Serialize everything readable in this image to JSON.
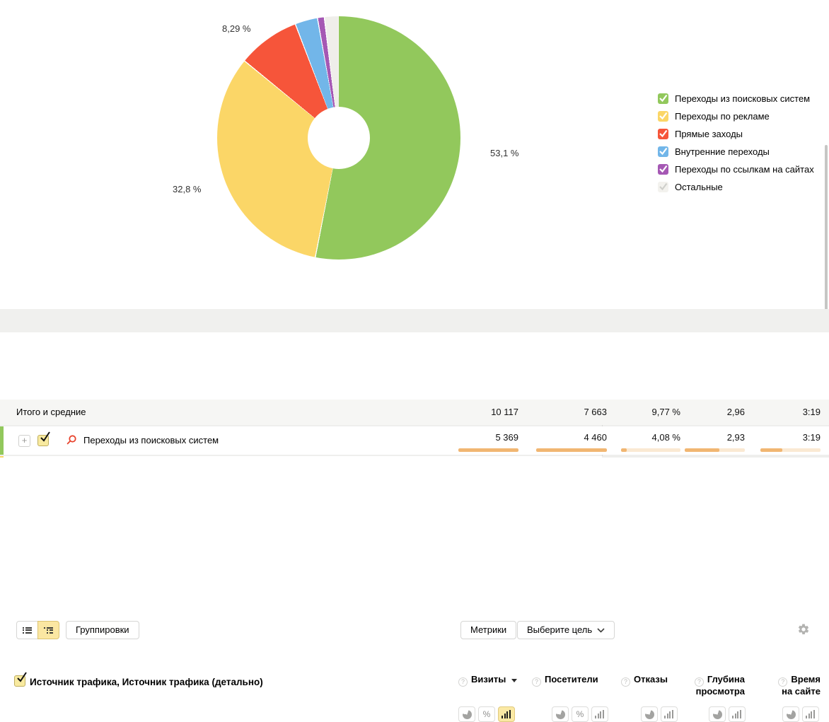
{
  "chart_data": {
    "type": "pie",
    "donut": true,
    "legend_position": "right",
    "unit": "%",
    "slices": [
      {
        "label": "Переходы из поисковых систем",
        "value": 53.1,
        "color": "#92c85c"
      },
      {
        "label": "Переходы по рекламе",
        "value": 32.8,
        "color": "#fbd667"
      },
      {
        "label": "Прямые заходы",
        "value": 8.29,
        "color": "#f6553a"
      },
      {
        "label": "Внутренние переходы",
        "value": 3.0,
        "color": "#72b6e9"
      },
      {
        "label": "Переходы по ссылкам на сайтах",
        "value": 0.9,
        "color": "#a558b4"
      },
      {
        "label": "Остальные",
        "value": 1.91,
        "color": "#efeeea"
      }
    ],
    "visible_percent_labels": {
      "top": "8,29 %",
      "right": "53,1 %",
      "left": "32,8 %"
    }
  },
  "legend": {
    "items": [
      {
        "label": "Переходы из поисковых систем",
        "color": "#92c85c",
        "check_color": "#ffffff",
        "checked": true
      },
      {
        "label": "Переходы по рекламе",
        "color": "#fbd667",
        "check_color": "#ffffff",
        "checked": true
      },
      {
        "label": "Прямые заходы",
        "color": "#f6553a",
        "check_color": "#ffffff",
        "checked": true
      },
      {
        "label": "Внутренние переходы",
        "color": "#72b6e9",
        "check_color": "#ffffff",
        "checked": true
      },
      {
        "label": "Переходы по ссылкам на сайтах",
        "color": "#a558b4",
        "check_color": "#ffffff",
        "checked": true
      },
      {
        "label": "Остальные",
        "color": "#f3f2ee",
        "check_color": "#cfcfcb",
        "checked": true
      }
    ]
  },
  "toolbar": {
    "groupings": "Группировки",
    "metrics": "Метрики",
    "goal": "Выберите цель"
  },
  "table": {
    "dimension_header": "Источник трафика, Источник трафика (детально)",
    "columns": [
      {
        "label": "Визиты",
        "line1": "Визиты",
        "sortable": true,
        "toggles": [
          "pie",
          "percent",
          "bar"
        ],
        "active_toggle": "bar"
      },
      {
        "label": "Посетители",
        "line1": "Посетители",
        "sortable": false,
        "toggles": [
          "pie",
          "percent",
          "bar"
        ],
        "active_toggle": null
      },
      {
        "label": "Отказы",
        "line1": "Отказы",
        "sortable": false,
        "toggles": [
          "pie",
          "bar"
        ],
        "active_toggle": null
      },
      {
        "label": "Глубина просмотра",
        "line1": "Глубина",
        "line2": "просмотра",
        "sortable": false,
        "toggles": [
          "pie",
          "bar"
        ],
        "active_toggle": null
      },
      {
        "label": "Время на сайте",
        "line1": "Время",
        "line2": "на сайте",
        "sortable": false,
        "toggles": [
          "pie",
          "bar"
        ],
        "active_toggle": null
      }
    ],
    "totals": {
      "label": "Итого и средние",
      "values": [
        "10 117",
        "7 663",
        "9,77 %",
        "2,96",
        "3:19"
      ]
    },
    "rows": [
      {
        "label": "Переходы из поисковых систем",
        "color": "#92c85c",
        "values": [
          "5 369",
          "4 460",
          "4,08 %",
          "2,93",
          "3:19"
        ],
        "bar_percents": [
          100,
          100,
          9,
          58,
          36
        ]
      }
    ],
    "next_row_color": "#fbd667"
  }
}
